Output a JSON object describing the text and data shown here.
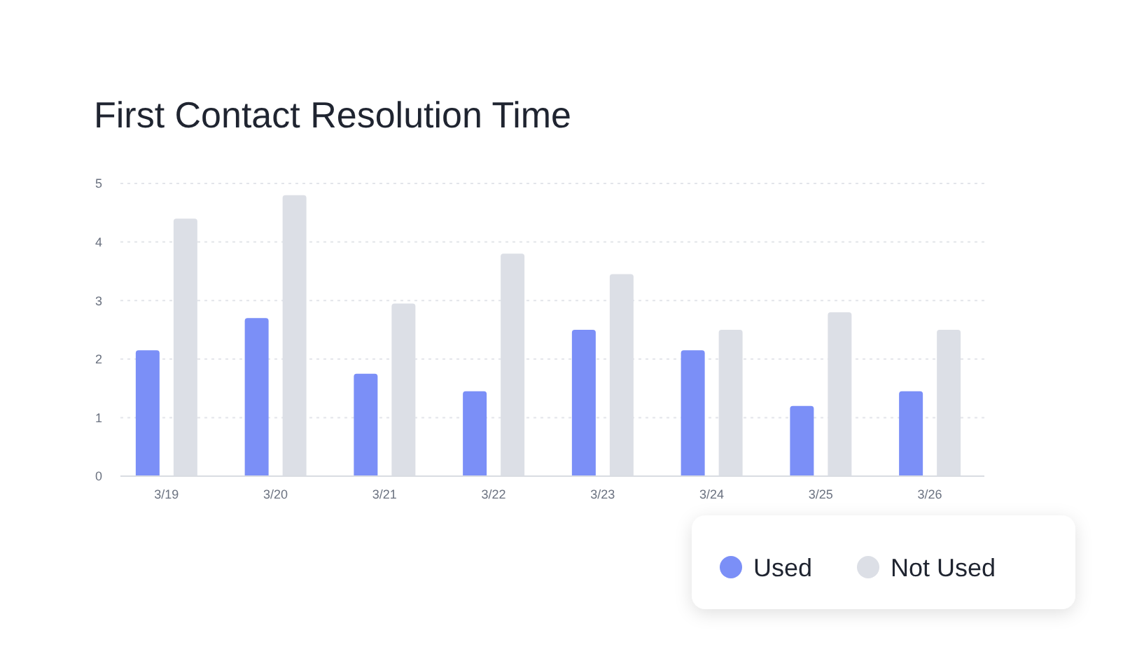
{
  "chart_data": {
    "type": "bar",
    "title": "First Contact Resolution Time",
    "categories": [
      "3/19",
      "3/20",
      "3/21",
      "3/22",
      "3/23",
      "3/24",
      "3/25",
      "3/26"
    ],
    "series": [
      {
        "name": "Used",
        "color": "#7b8ff7",
        "values": [
          2.15,
          2.7,
          1.75,
          1.45,
          2.5,
          2.15,
          1.2,
          1.45
        ]
      },
      {
        "name": "Not Used",
        "color": "#dcdfe6",
        "values": [
          4.4,
          4.8,
          2.95,
          3.8,
          3.45,
          2.5,
          2.8,
          2.5
        ]
      }
    ],
    "ylim": [
      0,
      5
    ],
    "yticks": [
      0,
      1,
      2,
      3,
      4,
      5
    ],
    "grid": "y",
    "legend": "bottom right"
  }
}
